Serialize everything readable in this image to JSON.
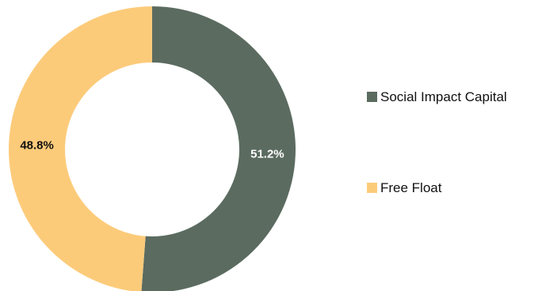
{
  "chart_data": {
    "type": "pie",
    "donut": true,
    "series": [
      {
        "name": "Social Impact Capital",
        "value": 51.2,
        "label": "51.2%",
        "color": "#5b6b60",
        "label_color": "#ffffff"
      },
      {
        "name": "Free Float",
        "value": 48.8,
        "label": "48.8%",
        "color": "#fccb7a",
        "label_color": "#111111"
      }
    ],
    "legend": {
      "position": "right",
      "entries": [
        "Social Impact Capital",
        "Free Float"
      ]
    },
    "title": ""
  }
}
